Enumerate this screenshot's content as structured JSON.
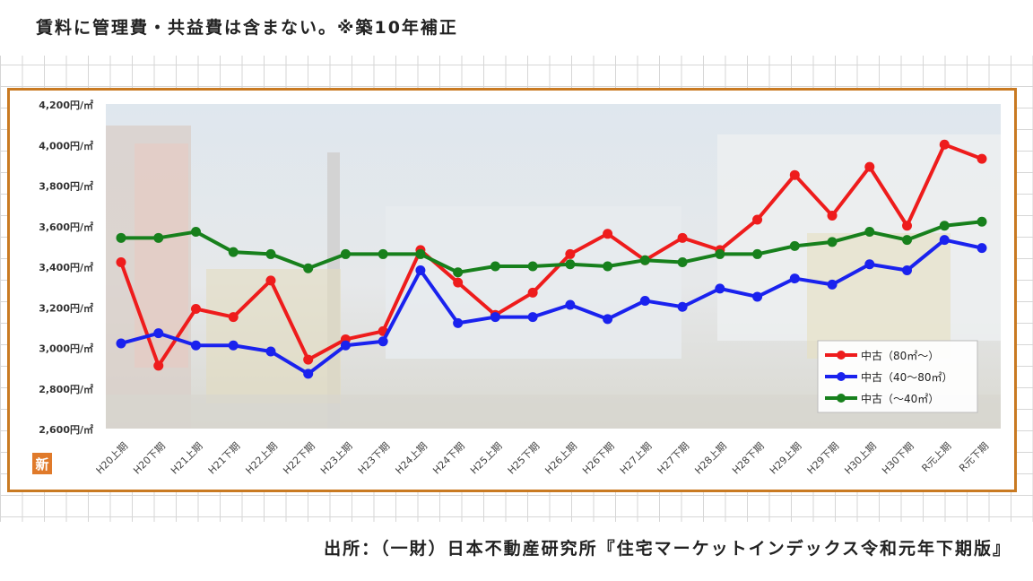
{
  "header": {
    "note": "賃料に管理費・共益費は含まない。※築10年補正"
  },
  "footer": {
    "source": "出所：（一財）日本不動産研究所『住宅マーケットインデックス令和元年下期版』"
  },
  "badge": {
    "label": "新"
  },
  "colors": {
    "frame": "#c97a22",
    "series_red": "#ee1c1c",
    "series_blue": "#1a22ee",
    "series_green": "#17801c"
  },
  "chart_data": {
    "type": "line",
    "title": "",
    "xlabel": "",
    "ylabel": "",
    "ylim": [
      2600,
      4200
    ],
    "y_ticks": [
      "4,200円/㎡",
      "4,000円/㎡",
      "3,800円/㎡",
      "3,600円/㎡",
      "3,400円/㎡",
      "3,200円/㎡",
      "3,000円/㎡",
      "2,800円/㎡",
      "2,600円/㎡"
    ],
    "y_tick_values": [
      4200,
      4000,
      3800,
      3600,
      3400,
      3200,
      3000,
      2800,
      2600
    ],
    "categories": [
      "H20上期",
      "H20下期",
      "H21上期",
      "H21下期",
      "H22上期",
      "H22下期",
      "H23上期",
      "H23下期",
      "H24上期",
      "H24下期",
      "H25上期",
      "H25下期",
      "H26上期",
      "H26下期",
      "H27上期",
      "H27下期",
      "H28上期",
      "H28下期",
      "H29上期",
      "H29下期",
      "H30上期",
      "H30下期",
      "R元上期",
      "R元下期"
    ],
    "legend_position": "bottom-right",
    "series": [
      {
        "name": "中古（80㎡～）",
        "color": "#ee1c1c",
        "values": [
          3420,
          2910,
          3190,
          3150,
          3330,
          2940,
          3040,
          3080,
          3480,
          3320,
          3160,
          3270,
          3460,
          3560,
          3430,
          3540,
          3480,
          3630,
          3850,
          3650,
          3890,
          3600,
          4000,
          3930
        ]
      },
      {
        "name": "中古（40～80㎡）",
        "color": "#1a22ee",
        "values": [
          3020,
          3070,
          3010,
          3010,
          2980,
          2870,
          3010,
          3030,
          3380,
          3120,
          3150,
          3150,
          3210,
          3140,
          3230,
          3200,
          3290,
          3250,
          3340,
          3310,
          3410,
          3380,
          3530,
          3490
        ]
      },
      {
        "name": "中古（～40㎡）",
        "color": "#17801c",
        "values": [
          3540,
          3540,
          3570,
          3470,
          3460,
          3390,
          3460,
          3460,
          3460,
          3370,
          3400,
          3400,
          3410,
          3400,
          3430,
          3420,
          3460,
          3460,
          3500,
          3520,
          3570,
          3530,
          3600,
          3620
        ]
      }
    ]
  }
}
